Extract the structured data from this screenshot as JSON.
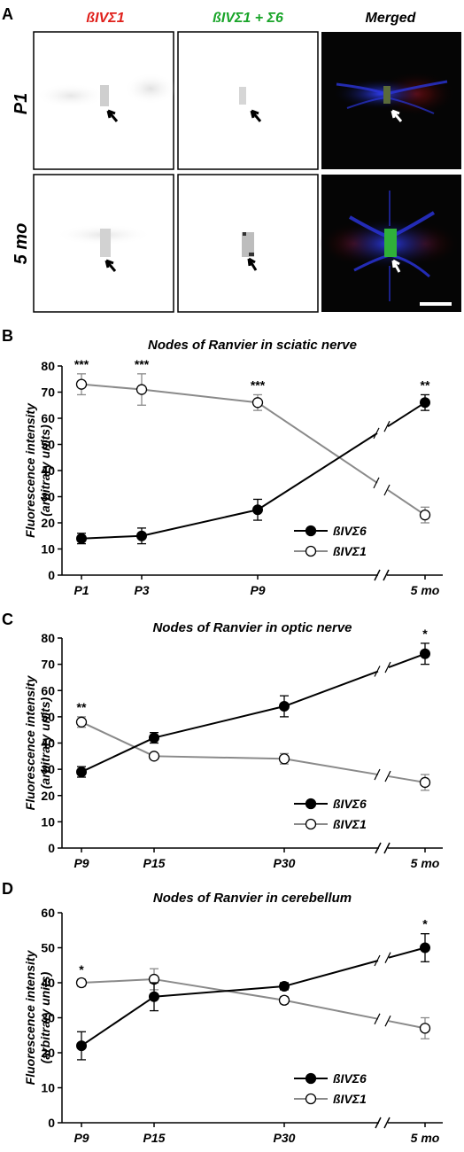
{
  "panel_a": {
    "label": "A",
    "columns": [
      {
        "title": "ßIVΣ1",
        "color": "#e0201b"
      },
      {
        "title": "ßIVΣ1 + Σ6",
        "color": "#1aa52a"
      },
      {
        "title": "Merged",
        "color": "#000000"
      }
    ],
    "rows": [
      "P1",
      "5 mo"
    ]
  },
  "chart_data": [
    {
      "panel_label": "B",
      "type": "line",
      "title": "Nodes of Ranvier in sciatic nerve",
      "ylabel_line1": "Fluorescence intensity",
      "ylabel_line2": "(arbitrary units)",
      "ylim": [
        0,
        80
      ],
      "yticks": [
        0,
        10,
        20,
        30,
        40,
        50,
        60,
        70,
        80
      ],
      "x": [
        "P1",
        "P3",
        "P9",
        "5 mo"
      ],
      "axis_break": true,
      "legend_position": "bottom-right",
      "series": [
        {
          "name": "ßIVΣ6",
          "marker": "filled",
          "color": "#000000",
          "values": [
            14,
            15,
            25,
            66
          ],
          "errors": [
            2,
            3,
            4,
            3
          ]
        },
        {
          "name": "ßIVΣ1",
          "marker": "open",
          "color": "#8a8a8a",
          "values": [
            73,
            71,
            66,
            23
          ],
          "errors": [
            4,
            6,
            3,
            3
          ]
        }
      ],
      "significance": [
        "***",
        "***",
        "***",
        "**"
      ]
    },
    {
      "panel_label": "C",
      "type": "line",
      "title": "Nodes of Ranvier in optic nerve",
      "ylabel_line1": "Fluorescence intensity",
      "ylabel_line2": "(arbitrary units)",
      "ylim": [
        0,
        80
      ],
      "yticks": [
        0,
        10,
        20,
        30,
        40,
        50,
        60,
        70,
        80
      ],
      "x": [
        "P9",
        "P15",
        "P30",
        "5 mo"
      ],
      "axis_break": true,
      "legend_position": "bottom-right",
      "series": [
        {
          "name": "ßIVΣ6",
          "marker": "filled",
          "color": "#000000",
          "values": [
            29,
            42,
            54,
            74
          ],
          "errors": [
            2,
            2,
            4,
            4
          ]
        },
        {
          "name": "ßIVΣ1",
          "marker": "open",
          "color": "#8a8a8a",
          "values": [
            48,
            35,
            34,
            25
          ],
          "errors": [
            2,
            1,
            2,
            3
          ]
        }
      ],
      "significance": [
        "**",
        "",
        "",
        "*"
      ]
    },
    {
      "panel_label": "D",
      "type": "line",
      "title": "Nodes of Ranvier in cerebellum",
      "ylabel_line1": "Fluorescence intensity",
      "ylabel_line2": "(arbitrary units)",
      "ylim": [
        0,
        60
      ],
      "yticks": [
        0,
        10,
        20,
        30,
        40,
        50,
        60
      ],
      "x": [
        "P9",
        "P15",
        "P30",
        "5 mo"
      ],
      "axis_break": true,
      "legend_position": "bottom-right",
      "series": [
        {
          "name": "ßIVΣ6",
          "marker": "filled",
          "color": "#000000",
          "values": [
            22,
            36,
            39,
            50
          ],
          "errors": [
            4,
            4,
            1,
            4
          ]
        },
        {
          "name": "ßIVΣ1",
          "marker": "open",
          "color": "#8a8a8a",
          "values": [
            40,
            41,
            35,
            27
          ],
          "errors": [
            1,
            3,
            1,
            3
          ]
        }
      ],
      "significance": [
        "*",
        "",
        "",
        "*"
      ]
    }
  ]
}
